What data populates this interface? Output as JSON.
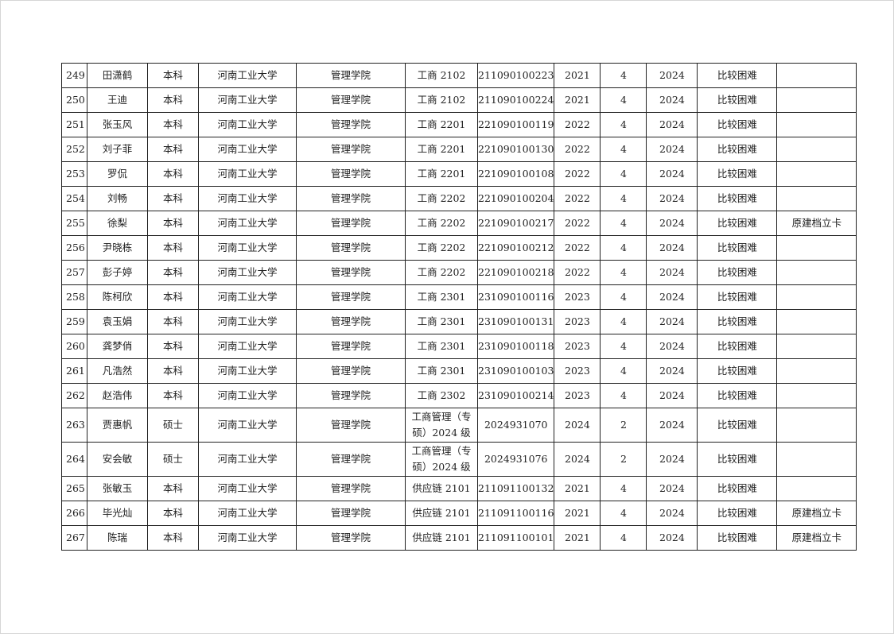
{
  "table": {
    "rows": [
      [
        "249",
        "田潇鹤",
        "本科",
        "河南工业大学",
        "管理学院",
        "工商 2102",
        "211090100223",
        "2021",
        "4",
        "2024",
        "比较困难",
        ""
      ],
      [
        "250",
        "王迪",
        "本科",
        "河南工业大学",
        "管理学院",
        "工商 2102",
        "211090100224",
        "2021",
        "4",
        "2024",
        "比较困难",
        ""
      ],
      [
        "251",
        "张玉风",
        "本科",
        "河南工业大学",
        "管理学院",
        "工商 2201",
        "221090100119",
        "2022",
        "4",
        "2024",
        "比较困难",
        ""
      ],
      [
        "252",
        "刘子菲",
        "本科",
        "河南工业大学",
        "管理学院",
        "工商 2201",
        "221090100130",
        "2022",
        "4",
        "2024",
        "比较困难",
        ""
      ],
      [
        "253",
        "罗侃",
        "本科",
        "河南工业大学",
        "管理学院",
        "工商 2201",
        "221090100108",
        "2022",
        "4",
        "2024",
        "比较困难",
        ""
      ],
      [
        "254",
        "刘畅",
        "本科",
        "河南工业大学",
        "管理学院",
        "工商 2202",
        "221090100204",
        "2022",
        "4",
        "2024",
        "比较困难",
        ""
      ],
      [
        "255",
        "徐梨",
        "本科",
        "河南工业大学",
        "管理学院",
        "工商 2202",
        "221090100217",
        "2022",
        "4",
        "2024",
        "比较困难",
        "原建档立卡"
      ],
      [
        "256",
        "尹晓栋",
        "本科",
        "河南工业大学",
        "管理学院",
        "工商 2202",
        "221090100212",
        "2022",
        "4",
        "2024",
        "比较困难",
        ""
      ],
      [
        "257",
        "彭子婷",
        "本科",
        "河南工业大学",
        "管理学院",
        "工商 2202",
        "221090100218",
        "2022",
        "4",
        "2024",
        "比较困难",
        ""
      ],
      [
        "258",
        "陈柯欣",
        "本科",
        "河南工业大学",
        "管理学院",
        "工商 2301",
        "231090100116",
        "2023",
        "4",
        "2024",
        "比较困难",
        ""
      ],
      [
        "259",
        "袁玉娟",
        "本科",
        "河南工业大学",
        "管理学院",
        "工商 2301",
        "231090100131",
        "2023",
        "4",
        "2024",
        "比较困难",
        ""
      ],
      [
        "260",
        "龚梦俏",
        "本科",
        "河南工业大学",
        "管理学院",
        "工商 2301",
        "231090100118",
        "2023",
        "4",
        "2024",
        "比较困难",
        ""
      ],
      [
        "261",
        "凡浩然",
        "本科",
        "河南工业大学",
        "管理学院",
        "工商 2301",
        "231090100103",
        "2023",
        "4",
        "2024",
        "比较困难",
        ""
      ],
      [
        "262",
        "赵浩伟",
        "本科",
        "河南工业大学",
        "管理学院",
        "工商 2302",
        "231090100214",
        "2023",
        "4",
        "2024",
        "比较困难",
        ""
      ],
      [
        "263",
        "贾惠帆",
        "硕士",
        "河南工业大学",
        "管理学院",
        "工商管理（专硕）2024 级",
        "2024931070",
        "2024",
        "2",
        "2024",
        "比较困难",
        ""
      ],
      [
        "264",
        "安会敏",
        "硕士",
        "河南工业大学",
        "管理学院",
        "工商管理（专硕）2024 级",
        "2024931076",
        "2024",
        "2",
        "2024",
        "比较困难",
        ""
      ],
      [
        "265",
        "张敏玉",
        "本科",
        "河南工业大学",
        "管理学院",
        "供应链 2101",
        "211091100132",
        "2021",
        "4",
        "2024",
        "比较困难",
        ""
      ],
      [
        "266",
        "毕光灿",
        "本科",
        "河南工业大学",
        "管理学院",
        "供应链 2101",
        "211091100116",
        "2021",
        "4",
        "2024",
        "比较困难",
        "原建档立卡"
      ],
      [
        "267",
        "陈瑞",
        "本科",
        "河南工业大学",
        "管理学院",
        "供应链 2101",
        "211091100101",
        "2021",
        "4",
        "2024",
        "比较困难",
        "原建档立卡"
      ]
    ]
  }
}
